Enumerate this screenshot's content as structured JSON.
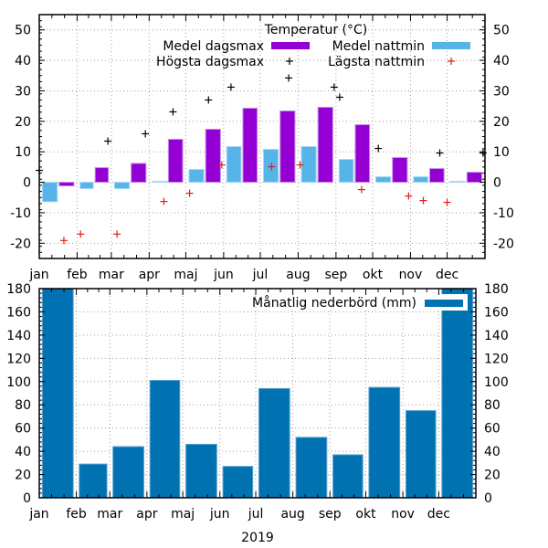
{
  "chart_data": [
    {
      "type": "bar",
      "title": "Temperatur (°C)",
      "xlabel": "",
      "ylabel": "",
      "ylim": [
        -25,
        55
      ],
      "yticks": [
        -20,
        -10,
        0,
        10,
        20,
        30,
        40,
        50
      ],
      "ytick_labels": [
        "-20",
        "-10",
        "0",
        "10",
        "20",
        "30",
        "40",
        "50"
      ],
      "grid": true,
      "legend_placement": "top-right",
      "categories": [
        "jan",
        "feb",
        "mar",
        "apr",
        "maj",
        "jun",
        "jul",
        "aug",
        "sep",
        "okt",
        "nov",
        "dec"
      ],
      "series": [
        {
          "name": "Medel dagsmax",
          "kind": "bar",
          "color": "#9400d3",
          "values": [
            -1.2,
            4.8,
            6.2,
            14.1,
            17.4,
            24.3,
            23.4,
            24.6,
            18.9,
            8.1,
            4.5,
            3.3
          ]
        },
        {
          "name": "Medel nattmin",
          "kind": "bar",
          "color": "#56b4e9",
          "values": [
            -6.4,
            -2.1,
            -2.1,
            0.3,
            4.2,
            11.7,
            10.8,
            11.7,
            7.5,
            1.8,
            1.8,
            0.3
          ]
        },
        {
          "name": "Högsta dagsmax",
          "kind": "point",
          "color": "#000000",
          "points": [
            {
              "month": 0.0,
              "value": 3.9
            },
            {
              "month": 1.9,
              "value": 13.5
            },
            {
              "month": 2.9,
              "value": 15.9
            },
            {
              "month": 3.65,
              "value": 23.1
            },
            {
              "month": 4.6,
              "value": 27.0
            },
            {
              "month": 5.2,
              "value": 31.2
            },
            {
              "month": 6.75,
              "value": 34.2
            },
            {
              "month": 7.95,
              "value": 31.2
            },
            {
              "month": 8.1,
              "value": 27.9
            },
            {
              "month": 9.15,
              "value": 11.1
            },
            {
              "month": 10.8,
              "value": 9.6
            },
            {
              "month": 11.95,
              "value": 9.6
            }
          ]
        },
        {
          "name": "Lägsta nattmin",
          "kind": "point",
          "color": "#e51e10",
          "points": [
            {
              "month": 0.65,
              "value": -19.1
            },
            {
              "month": 1.1,
              "value": -17.0
            },
            {
              "month": 2.15,
              "value": -17.0
            },
            {
              "month": 3.4,
              "value": -6.3
            },
            {
              "month": 4.1,
              "value": -3.6
            },
            {
              "month": 4.95,
              "value": 5.7
            },
            {
              "month": 6.3,
              "value": 5.1
            },
            {
              "month": 7.05,
              "value": 5.7
            },
            {
              "month": 8.7,
              "value": -2.4
            },
            {
              "month": 9.95,
              "value": -4.5
            },
            {
              "month": 10.35,
              "value": -6.0
            },
            {
              "month": 11.0,
              "value": -6.6
            }
          ]
        }
      ],
      "legend": [
        {
          "label": "Medel dagsmax",
          "kind": "bar",
          "color": "#9400d3"
        },
        {
          "label": "Medel nattmin",
          "kind": "bar",
          "color": "#56b4e9"
        },
        {
          "label": "Högsta dagsmax",
          "kind": "point",
          "color": "#000000"
        },
        {
          "label": "Lägsta nattmin",
          "kind": "point",
          "color": "#e51e10"
        }
      ]
    },
    {
      "type": "bar",
      "title": "",
      "xlabel": "2019",
      "ylabel": "",
      "ylim": [
        0,
        180
      ],
      "yticks": [
        0,
        20,
        40,
        60,
        80,
        100,
        120,
        140,
        160,
        180
      ],
      "ytick_labels": [
        "0",
        "20",
        "40",
        "60",
        "80",
        "100",
        "120",
        "140",
        "160",
        "180"
      ],
      "grid": true,
      "legend_placement": "top-right",
      "categories": [
        "jan",
        "feb",
        "mar",
        "apr",
        "maj",
        "jun",
        "jul",
        "aug",
        "sep",
        "okt",
        "nov",
        "dec"
      ],
      "series": [
        {
          "name": "Månatlig nederbörd (mm)",
          "kind": "bar",
          "color": "#0072b2",
          "values": [
            180,
            29,
            44,
            101,
            46,
            27,
            94,
            52,
            37,
            95,
            75,
            180
          ]
        }
      ],
      "legend": [
        {
          "label": "Månatlig nederbörd (mm)",
          "kind": "bar",
          "color": "#0072b2"
        }
      ]
    }
  ]
}
